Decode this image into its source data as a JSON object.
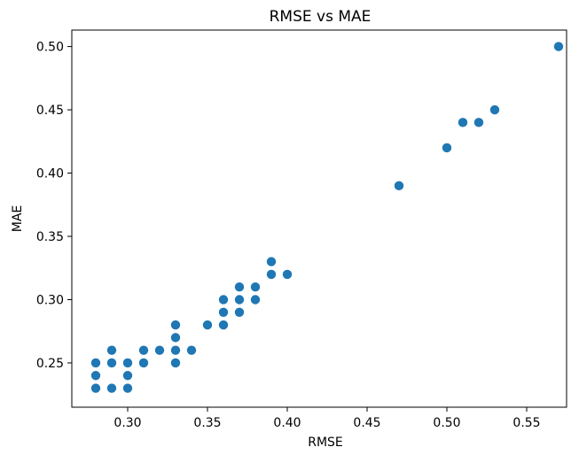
{
  "chart_data": {
    "type": "scatter",
    "title": "RMSE vs MAE",
    "xlabel": "RMSE",
    "ylabel": "MAE",
    "xlim": [
      0.265,
      0.575
    ],
    "ylim": [
      0.215,
      0.513
    ],
    "xticks": [
      0.3,
      0.35,
      0.4,
      0.45,
      0.5,
      0.55
    ],
    "xtick_labels": [
      "0.30",
      "0.35",
      "0.40",
      "0.45",
      "0.50",
      "0.55"
    ],
    "yticks": [
      0.25,
      0.3,
      0.35,
      0.4,
      0.45,
      0.5
    ],
    "ytick_labels": [
      "0.25",
      "0.30",
      "0.35",
      "0.40",
      "0.45",
      "0.50"
    ],
    "grid": false,
    "point_color": "#1f77b4",
    "series": [
      {
        "points": [
          [
            0.28,
            0.25
          ],
          [
            0.28,
            0.24
          ],
          [
            0.28,
            0.23
          ],
          [
            0.29,
            0.26
          ],
          [
            0.29,
            0.25
          ],
          [
            0.29,
            0.23
          ],
          [
            0.3,
            0.25
          ],
          [
            0.3,
            0.24
          ],
          [
            0.3,
            0.23
          ],
          [
            0.31,
            0.26
          ],
          [
            0.31,
            0.25
          ],
          [
            0.32,
            0.26
          ],
          [
            0.33,
            0.28
          ],
          [
            0.33,
            0.27
          ],
          [
            0.33,
            0.26
          ],
          [
            0.33,
            0.25
          ],
          [
            0.34,
            0.26
          ],
          [
            0.35,
            0.28
          ],
          [
            0.36,
            0.3
          ],
          [
            0.36,
            0.29
          ],
          [
            0.36,
            0.28
          ],
          [
            0.37,
            0.31
          ],
          [
            0.37,
            0.3
          ],
          [
            0.37,
            0.29
          ],
          [
            0.38,
            0.31
          ],
          [
            0.38,
            0.3
          ],
          [
            0.39,
            0.33
          ],
          [
            0.39,
            0.32
          ],
          [
            0.4,
            0.32
          ],
          [
            0.47,
            0.39
          ],
          [
            0.5,
            0.42
          ],
          [
            0.51,
            0.44
          ],
          [
            0.52,
            0.44
          ],
          [
            0.53,
            0.45
          ],
          [
            0.57,
            0.5
          ]
        ]
      }
    ]
  }
}
